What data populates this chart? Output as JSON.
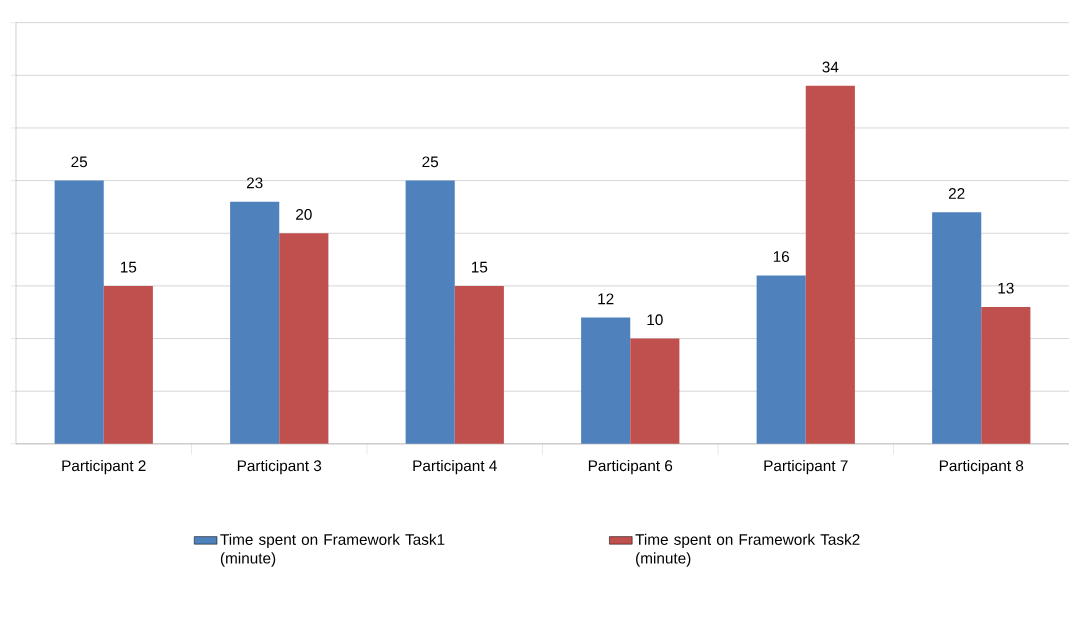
{
  "chart_data": {
    "type": "bar",
    "categories": [
      "Participant 2",
      "Participant 3",
      "Participant 4",
      "Participant 6",
      "Participant 7",
      "Participant 8"
    ],
    "series": [
      {
        "name": "Time spent on Framework Task1 (minute)",
        "color": "#4f81bd",
        "values": [
          25,
          23,
          25,
          12,
          16,
          22
        ]
      },
      {
        "name": "Time spent on Framework Task2 (minute)",
        "color": "#c0504d",
        "values": [
          15,
          20,
          15,
          10,
          34,
          13
        ]
      }
    ],
    "ylim": [
      0,
      40
    ],
    "yticks": [
      {
        "value": 0,
        "label": null
      },
      {
        "value": 5,
        "label": null
      },
      {
        "value": 10,
        "label": null
      },
      {
        "value": 15,
        "label": null
      },
      {
        "value": 20,
        "label": null
      },
      {
        "value": 25,
        "label": null
      },
      {
        "value": 30,
        "label": null
      },
      {
        "value": 35,
        "label": null
      },
      {
        "value": 40,
        "label": null
      }
    ],
    "tick_labels": "x",
    "grid": "y",
    "legend": "bottom",
    "data_labels": true
  }
}
